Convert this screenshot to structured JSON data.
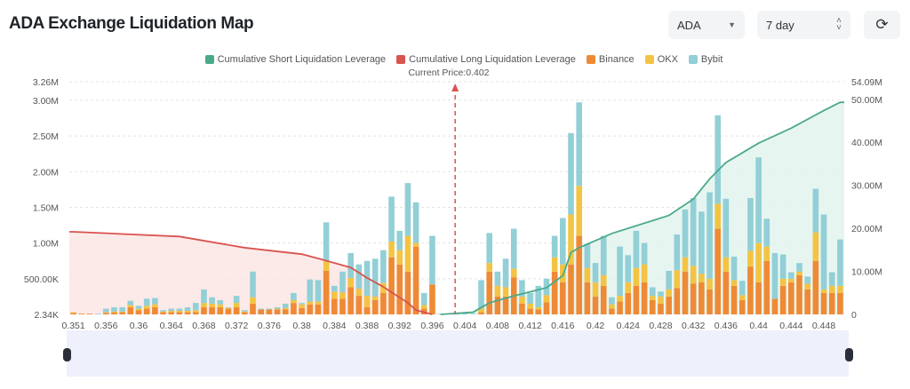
{
  "header": {
    "title": "ADA Exchange Liquidation Map",
    "coin_select": "ADA",
    "period_select": "7 day",
    "refresh_icon": "refresh-icon"
  },
  "colors": {
    "short_line": "#4aa98a",
    "long_line": "#d9534f",
    "binance": "#ee8a35",
    "okx": "#f3c443",
    "bybit": "#92cfd6",
    "long_fill": "#fbe6e4",
    "short_fill": "#e3f3ef"
  },
  "chart_data": {
    "type": "bar",
    "title": "ADA Exchange Liquidation Map",
    "legend": [
      "Cumulative Short Liquidation Leverage",
      "Cumulative Long Liquidation Leverage",
      "Binance",
      "OKX",
      "Bybit"
    ],
    "legend_position": "top-center",
    "annotation": "Current Price:0.402",
    "current_price": 0.402,
    "left_axis": {
      "ticks": [
        "3.26M",
        "3.00M",
        "2.50M",
        "2.00M",
        "1.50M",
        "1.00M",
        "500.00K",
        "2.34K"
      ],
      "tick_values": [
        3.26,
        3.0,
        2.5,
        2.0,
        1.5,
        1.0,
        0.5,
        0.00234
      ],
      "range": [
        0.00234,
        3.26
      ],
      "unit": "M"
    },
    "right_axis": {
      "ticks": [
        "54.09M",
        "50.00M",
        "40.00M",
        "30.00M",
        "20.00M",
        "10.00M",
        "0"
      ],
      "tick_values": [
        54.09,
        50,
        40,
        30,
        20,
        10,
        0
      ],
      "range": [
        0,
        54.09
      ],
      "unit": "M"
    },
    "x_tick_labels": [
      "0.351",
      "0.356",
      "0.36",
      "0.364",
      "0.368",
      "0.372",
      "0.376",
      "0.38",
      "0.384",
      "0.388",
      "0.392",
      "0.396",
      "0.404",
      "0.408",
      "0.412",
      "0.416",
      "0.42",
      "0.424",
      "0.428",
      "0.432",
      "0.436",
      "0.44",
      "0.444",
      "0.448"
    ],
    "categories": [
      "0.351",
      "0.353",
      "0.354",
      "0.355",
      "0.356",
      "0.357",
      "0.358",
      "0.359",
      "0.36",
      "0.361",
      "0.362",
      "0.363",
      "0.364",
      "0.365",
      "0.366",
      "0.367",
      "0.368",
      "0.369",
      "0.37",
      "0.371",
      "0.372",
      "0.373",
      "0.374",
      "0.375",
      "0.376",
      "0.377",
      "0.378",
      "0.379",
      "0.38",
      "0.381",
      "0.382",
      "0.383",
      "0.384",
      "0.385",
      "0.386",
      "0.387",
      "0.388",
      "0.389",
      "0.39",
      "0.391",
      "0.392",
      "0.393",
      "0.394",
      "0.395",
      "0.396",
      "0.397",
      "0.398",
      "0.403",
      "0.404",
      "0.405",
      "0.406",
      "0.407",
      "0.408",
      "0.409",
      "0.41",
      "0.411",
      "0.412",
      "0.413",
      "0.414",
      "0.415",
      "0.416",
      "0.417",
      "0.418",
      "0.419",
      "0.42",
      "0.421",
      "0.422",
      "0.423",
      "0.424",
      "0.425",
      "0.426",
      "0.427",
      "0.428",
      "0.429",
      "0.43",
      "0.431",
      "0.432",
      "0.433",
      "0.434",
      "0.435",
      "0.436",
      "0.437",
      "0.438",
      "0.439",
      "0.44",
      "0.441",
      "0.442",
      "0.443",
      "0.444",
      "0.445",
      "0.446",
      "0.447",
      "0.448",
      "0.449",
      "0.45"
    ],
    "series": [
      {
        "name": "Binance",
        "axis": "left",
        "values": [
          0.02,
          0.01,
          0.01,
          0,
          0.02,
          0.03,
          0.03,
          0.1,
          0.06,
          0.08,
          0.1,
          0.03,
          0.03,
          0.03,
          0.03,
          0.03,
          0.1,
          0.1,
          0.1,
          0.08,
          0.1,
          0.03,
          0.15,
          0.07,
          0.07,
          0.07,
          0.07,
          0.16,
          0.09,
          0.14,
          0.14,
          0.61,
          0.22,
          0.22,
          0.38,
          0.26,
          0.1,
          0.2,
          0.3,
          0.8,
          0.7,
          0.6,
          0.95,
          0.08,
          0.42,
          0,
          0,
          0,
          0,
          0,
          0.03,
          0.6,
          0.25,
          0.25,
          0.52,
          0.15,
          0.08,
          0.07,
          0.17,
          0.6,
          0.45,
          0.7,
          1.1,
          0.45,
          0.25,
          0.4,
          0.08,
          0.18,
          0.3,
          0.4,
          0.45,
          0.2,
          0.15,
          0.25,
          0.37,
          0.6,
          0.43,
          0.45,
          0.35,
          1.2,
          0.6,
          0.4,
          0.2,
          0.67,
          0.45,
          0.75,
          0.22,
          0.4,
          0.45,
          0.55,
          0.35,
          0.75,
          0.3,
          0.3,
          0.3
        ]
      },
      {
        "name": "OKX",
        "axis": "left",
        "values": [
          0.01,
          0,
          0,
          0,
          0.01,
          0.01,
          0.01,
          0.03,
          0.02,
          0.04,
          0.04,
          0.01,
          0.02,
          0.02,
          0.02,
          0.03,
          0.06,
          0.05,
          0.04,
          0.01,
          0.06,
          0.01,
          0.09,
          0,
          0,
          0.01,
          0.02,
          0.04,
          0.05,
          0.04,
          0.04,
          0.14,
          0.1,
          0.09,
          0.13,
          0.1,
          0.16,
          0.05,
          0.14,
          0.22,
          0.2,
          0.5,
          0.05,
          0.05,
          0,
          0,
          0,
          0,
          0,
          0,
          0.05,
          0.12,
          0.15,
          0.13,
          0.12,
          0.1,
          0.07,
          0.03,
          0.1,
          0.2,
          0.25,
          0.7,
          0.7,
          0.2,
          0.2,
          0.15,
          0.06,
          0.08,
          0.15,
          0.25,
          0.25,
          0.06,
          0.1,
          0.1,
          0.25,
          0.2,
          0.25,
          0.12,
          0.15,
          0.35,
          0.2,
          0.08,
          0.07,
          0.22,
          0.55,
          0.2,
          0,
          0.1,
          0.05,
          0.05,
          0.08,
          0.4,
          0.05,
          0.1,
          0.1
        ]
      },
      {
        "name": "Bybit",
        "axis": "left",
        "values": [
          0,
          0,
          0,
          0.01,
          0.05,
          0.06,
          0.06,
          0.06,
          0.04,
          0.1,
          0.09,
          0.02,
          0.03,
          0.03,
          0.05,
          0.1,
          0.19,
          0.09,
          0.06,
          0.01,
          0.1,
          0.02,
          0.36,
          0.01,
          0.01,
          0.02,
          0.06,
          0.1,
          0.02,
          0.31,
          0.3,
          0.54,
          0.08,
          0.29,
          0.35,
          0.34,
          0.49,
          0.53,
          0.46,
          0.63,
          0.27,
          0.74,
          0.57,
          0.17,
          0.68,
          0.01,
          0.01,
          0.01,
          0.02,
          0.01,
          0.4,
          0.42,
          0.2,
          0.4,
          0.56,
          0.23,
          0.15,
          0.3,
          0.23,
          0.3,
          0.65,
          1.14,
          1.17,
          0.34,
          0.27,
          0.55,
          0.1,
          0.69,
          0.38,
          0.52,
          0.3,
          0.12,
          0.07,
          0.26,
          0.5,
          0.67,
          0.95,
          0.87,
          1.21,
          1.24,
          0.82,
          0.33,
          0.2,
          0.74,
          1.2,
          0.39,
          0.64,
          0.34,
          0.09,
          0.12,
          0.1,
          0.61,
          1.05,
          0.19,
          0.65
        ]
      },
      {
        "name": "Cumulative Long Liquidation Leverage",
        "axis": "right",
        "type": "line",
        "x": [
          "0.351",
          "0.365",
          "0.373",
          "0.38",
          "0.382",
          "0.386",
          "0.388",
          "0.39",
          "0.393",
          "0.394",
          "0.396"
        ],
        "values": [
          19.2,
          18.1,
          15.5,
          14.0,
          13.0,
          10.9,
          8.5,
          6.4,
          2.7,
          1.0,
          0
        ]
      },
      {
        "name": "Cumulative Short Liquidation Leverage",
        "axis": "right",
        "type": "line",
        "x": [
          "0.397",
          "0.405",
          "0.407",
          "0.41",
          "0.414",
          "0.416",
          "0.417",
          "0.418",
          "0.422",
          "0.429",
          "0.432",
          "0.434",
          "0.436",
          "0.44",
          "0.444",
          "0.448",
          "0.45"
        ],
        "values": [
          0,
          0.5,
          2.7,
          4.3,
          6.2,
          9.0,
          14.4,
          15.5,
          18.8,
          23.0,
          26.8,
          31.5,
          35.3,
          39.8,
          43.3,
          47.4,
          49.3
        ]
      }
    ]
  }
}
